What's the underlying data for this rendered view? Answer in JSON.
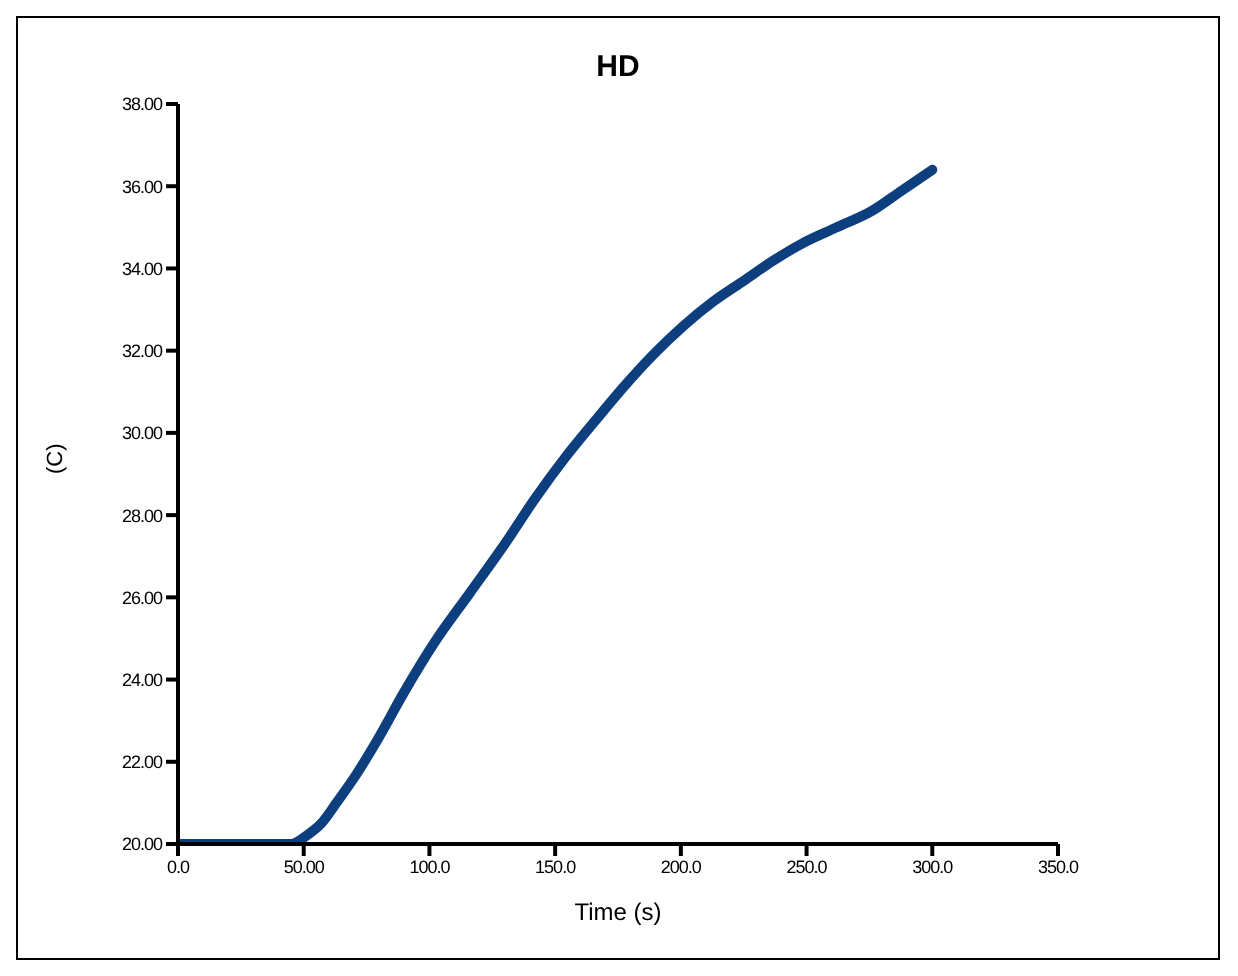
{
  "chart_data": {
    "type": "line",
    "title": "HD",
    "xlabel": "Time (s)",
    "ylabel": "(C)",
    "x": [
      0,
      10,
      20,
      30,
      40,
      45,
      51,
      57,
      63,
      71,
      79,
      90,
      102,
      116,
      130,
      142,
      154,
      166,
      177,
      189,
      201,
      213,
      225,
      237,
      248,
      262,
      276,
      288,
      300
    ],
    "series": [
      {
        "color": "#0d3f7e",
        "values": [
          20,
          20,
          20,
          20,
          20,
          20,
          20.2,
          20.5,
          21.0,
          21.7,
          22.5,
          23.7,
          24.9,
          26.1,
          27.3,
          28.4,
          29.4,
          30.3,
          31.1,
          31.9,
          32.6,
          33.2,
          33.7,
          34.2,
          34.6,
          35.0,
          35.4,
          35.9,
          36.4
        ]
      }
    ],
    "xlim": [
      0,
      350
    ],
    "xticks": [
      {
        "value": 0,
        "label": "0.0"
      },
      {
        "value": 50,
        "label": "50.00"
      },
      {
        "value": 100,
        "label": "100.0"
      },
      {
        "value": 150,
        "label": "150.0"
      },
      {
        "value": 200,
        "label": "200.0"
      },
      {
        "value": 250,
        "label": "250.0"
      },
      {
        "value": 300,
        "label": "300.0"
      },
      {
        "value": 350,
        "label": "350.0"
      }
    ],
    "ylim": [
      20,
      38
    ],
    "yticks": [
      {
        "value": 20,
        "label": "20.00"
      },
      {
        "value": 22,
        "label": "22.00"
      },
      {
        "value": 24,
        "label": "24.00"
      },
      {
        "value": 26,
        "label": "26.00"
      },
      {
        "value": 28,
        "label": "28.00"
      },
      {
        "value": 30,
        "label": "30.00"
      },
      {
        "value": 32,
        "label": "32.00"
      },
      {
        "value": 34,
        "label": "34.00"
      },
      {
        "value": 36,
        "label": "36.00"
      },
      {
        "value": 38,
        "label": "38.00"
      }
    ],
    "grid": false,
    "legend": false,
    "marker": "none",
    "line_style": "solid"
  }
}
